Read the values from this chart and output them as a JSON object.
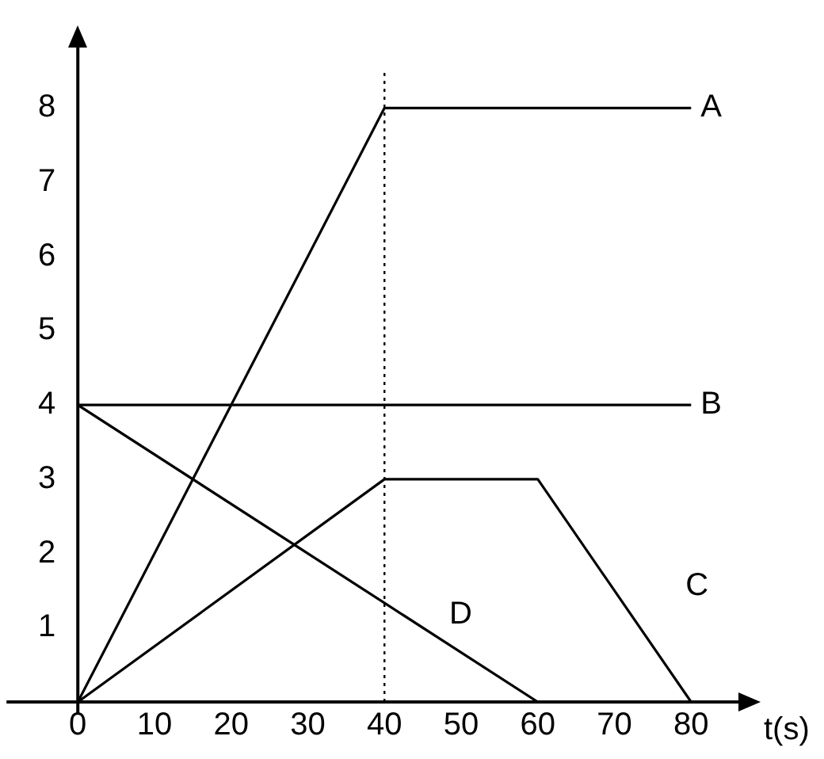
{
  "chart_data": {
    "type": "line",
    "xlabel": "t(s)",
    "series": [
      {
        "name": "A",
        "color": "#000000",
        "x": [
          0,
          40,
          80
        ],
        "values": [
          0,
          8,
          8
        ]
      },
      {
        "name": "B",
        "color": "#000000",
        "x": [
          0,
          80
        ],
        "values": [
          4,
          4
        ]
      },
      {
        "name": "C",
        "color": "#000000",
        "x": [
          0,
          40,
          60,
          80
        ],
        "values": [
          0,
          3,
          3,
          0
        ]
      },
      {
        "name": "D",
        "color": "#000000",
        "x": [
          0,
          60
        ],
        "values": [
          4,
          0
        ]
      }
    ],
    "xlim": [
      0,
      87
    ],
    "xticks": [
      0,
      10,
      20,
      30,
      40,
      50,
      60,
      70,
      80
    ],
    "ylim": [
      0,
      8.9
    ],
    "yticks": [
      1,
      2,
      3,
      4,
      5,
      6,
      7,
      8
    ],
    "ref_lines": [
      {
        "axis": "x",
        "value": 40,
        "line_style": "dotted",
        "color": "#000000"
      }
    ],
    "grid": false,
    "legend": false,
    "marker": "none",
    "line_style": "solid"
  }
}
